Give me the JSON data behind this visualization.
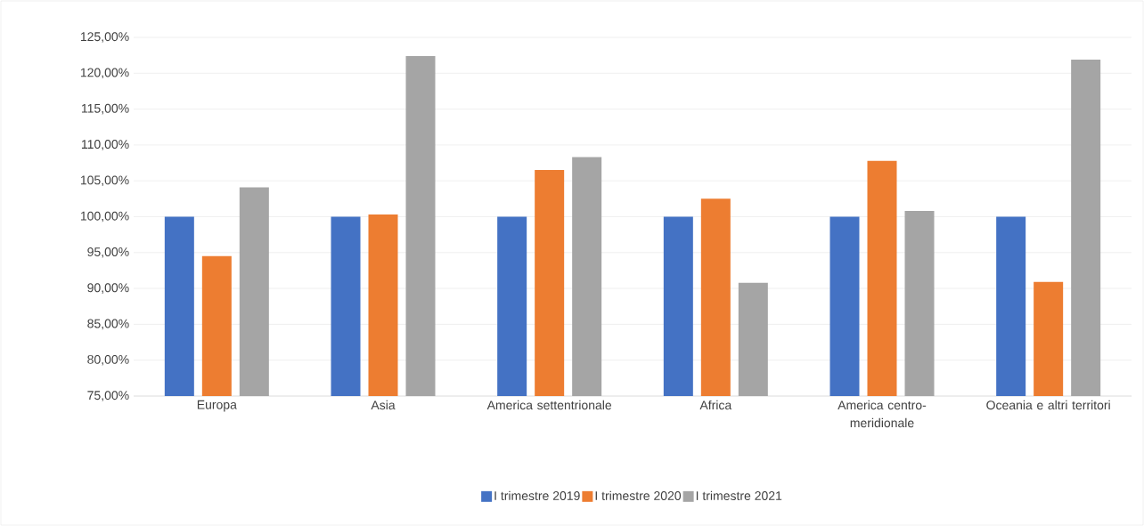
{
  "chart_data": {
    "type": "bar",
    "categories": [
      "Europa",
      "Asia",
      "America settentrionale",
      "Africa",
      "America centro-meridionale",
      "Oceania e altri territori"
    ],
    "series": [
      {
        "name": "I trimestre 2019",
        "color": "#4472c4",
        "values": [
          100,
          100,
          100,
          100,
          100,
          100
        ]
      },
      {
        "name": "I trimestre 2020",
        "color": "#ed7d31",
        "values": [
          94.5,
          100.3,
          106.5,
          102.5,
          107.8,
          90.9
        ]
      },
      {
        "name": "I trimestre 2021",
        "color": "#a5a5a5",
        "values": [
          104.1,
          122.4,
          108.3,
          90.8,
          100.8,
          121.9
        ]
      }
    ],
    "ylim": [
      75,
      125
    ],
    "yticks": [
      {
        "value": 75,
        "label": "75,00%"
      },
      {
        "value": 80,
        "label": "80,00%"
      },
      {
        "value": 85,
        "label": "85,00%"
      },
      {
        "value": 90,
        "label": "90,00%"
      },
      {
        "value": 95,
        "label": "95,00%"
      },
      {
        "value": 100,
        "label": "100,00%"
      },
      {
        "value": 105,
        "label": "105,00%"
      },
      {
        "value": 110,
        "label": "110,00%"
      },
      {
        "value": 115,
        "label": "115,00%"
      },
      {
        "value": 120,
        "label": "120,00%"
      },
      {
        "value": 125,
        "label": "125,00%"
      }
    ],
    "grid": "y",
    "legend": "bottom"
  }
}
